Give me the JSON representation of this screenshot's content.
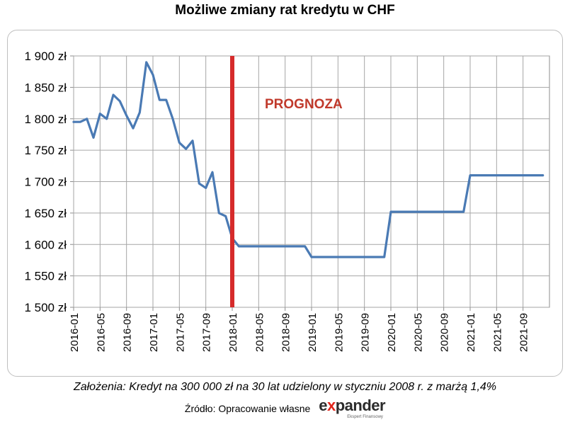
{
  "chart_data": {
    "type": "line",
    "title": "Możliwe zmiany rat kredytu w CHF",
    "xlabel": "",
    "ylabel": "",
    "ylim": [
      1500,
      1900
    ],
    "yticks": [
      1500,
      1550,
      1600,
      1650,
      1700,
      1750,
      1800,
      1850,
      1900
    ],
    "ytick_labels": [
      "1 500 zł",
      "1 550 zł",
      "1 600 zł",
      "1 650 zł",
      "1 700 zł",
      "1 750 zł",
      "1 800 zł",
      "1 850 zł",
      "1 900 zł"
    ],
    "xtick_labels": [
      "2016-01",
      "2016-05",
      "2016-09",
      "2017-01",
      "2017-05",
      "2017-09",
      "2018-01",
      "2018-05",
      "2018-09",
      "2019-01",
      "2019-05",
      "2019-09",
      "2020-01",
      "2020-05",
      "2020-09",
      "2021-01",
      "2021-05",
      "2021-09"
    ],
    "grid": true,
    "line_color": "#4a7ab4",
    "series": [
      {
        "name": "",
        "x": [
          "2016-01",
          "2016-02",
          "2016-03",
          "2016-04",
          "2016-05",
          "2016-06",
          "2016-07",
          "2016-08",
          "2016-09",
          "2016-10",
          "2016-11",
          "2016-12",
          "2017-01",
          "2017-02",
          "2017-03",
          "2017-04",
          "2017-05",
          "2017-06",
          "2017-07",
          "2017-08",
          "2017-09",
          "2017-10",
          "2017-11",
          "2017-12",
          "2018-01",
          "2018-02",
          "2018-03",
          "2018-04",
          "2018-05",
          "2018-06",
          "2018-07",
          "2018-08",
          "2018-09",
          "2018-10",
          "2018-11",
          "2018-12",
          "2019-01",
          "2019-02",
          "2019-03",
          "2019-04",
          "2019-05",
          "2019-06",
          "2019-07",
          "2019-08",
          "2019-09",
          "2019-10",
          "2019-11",
          "2019-12",
          "2020-01",
          "2020-02",
          "2020-03",
          "2020-04",
          "2020-05",
          "2020-06",
          "2020-07",
          "2020-08",
          "2020-09",
          "2020-10",
          "2020-11",
          "2020-12",
          "2021-01",
          "2021-02",
          "2021-03",
          "2021-04",
          "2021-05",
          "2021-06",
          "2021-07",
          "2021-08",
          "2021-09",
          "2021-10",
          "2021-11",
          "2021-12"
        ],
        "values": [
          1795,
          1795,
          1800,
          1770,
          1808,
          1800,
          1838,
          1828,
          1805,
          1785,
          1810,
          1890,
          1870,
          1830,
          1830,
          1800,
          1762,
          1752,
          1765,
          1697,
          1690,
          1715,
          1650,
          1645,
          1610,
          1597,
          1597,
          1597,
          1597,
          1597,
          1597,
          1597,
          1597,
          1597,
          1597,
          1597,
          1580,
          1580,
          1580,
          1580,
          1580,
          1580,
          1580,
          1580,
          1580,
          1580,
          1580,
          1580,
          1652,
          1652,
          1652,
          1652,
          1652,
          1652,
          1652,
          1652,
          1652,
          1652,
          1652,
          1652,
          1710,
          1710,
          1710,
          1710,
          1710,
          1710,
          1710,
          1710,
          1710,
          1710,
          1710,
          1710
        ]
      }
    ],
    "annotations": [
      {
        "text": "PROGNOZA",
        "color": "#c0392b",
        "marker_x": "2018-01",
        "marker_color": "#d62b2b"
      }
    ]
  },
  "note": "Założenia: Kredyt na 300 000 zł na 30 lat udzielony w styczniu 2008 r. z marżą 1,4%",
  "source": "Źródło: Opracowanie własne",
  "logo": {
    "word_before": "e",
    "word_x": "x",
    "word_after": "pander",
    "tagline": "Ekspert Finansowy"
  }
}
